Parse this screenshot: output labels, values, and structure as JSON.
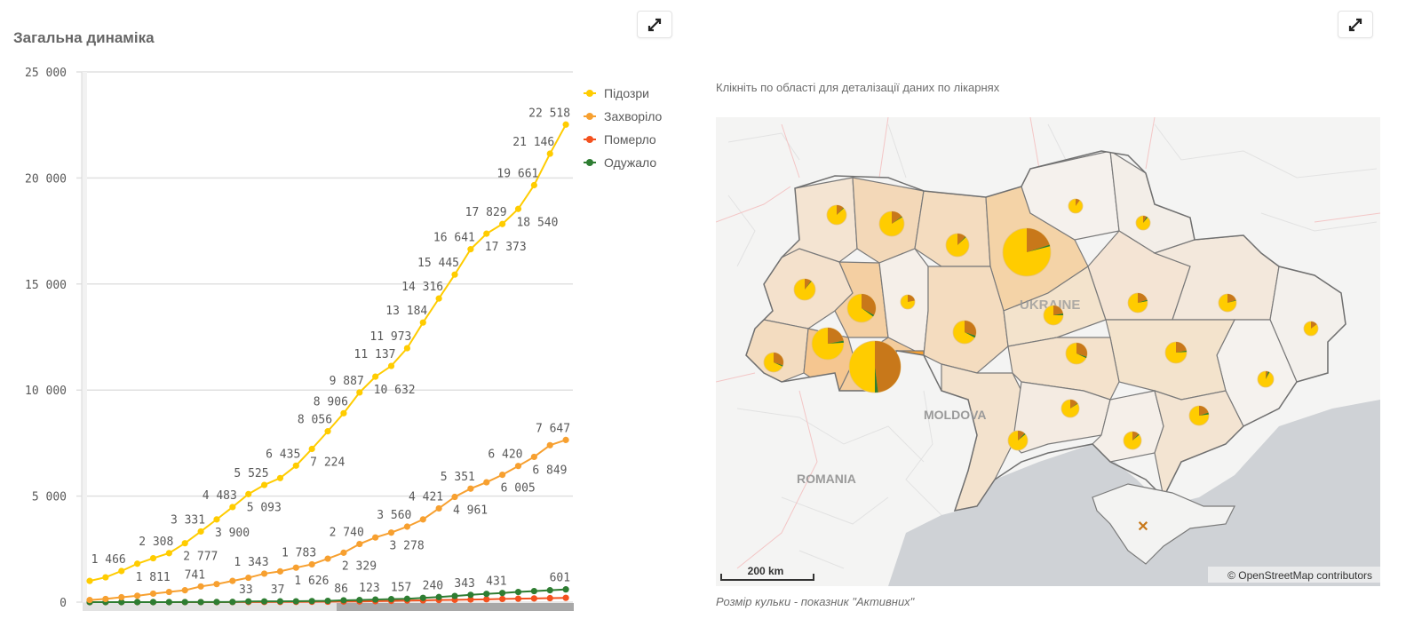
{
  "left_panel": {
    "title": "Загальна динаміка",
    "expand_icon": "expand-arrows-icon"
  },
  "right_panel": {
    "subtitle": "Клікніть по області для деталізації даних по лікарнях",
    "caption": "Розмір кульки - показник \"Активних\"",
    "expand_icon": "expand-arrows-icon",
    "map": {
      "labels": {
        "ukraine": "UKRAINE",
        "moldova": "MOLDOVA",
        "romania": "ROMANIA"
      },
      "scale_bar": "200 km",
      "attribution": "© OpenStreetMap contributors",
      "pie_colors": {
        "main": "#ffcc00",
        "second": "#c8781a",
        "third": "#2e7d32"
      },
      "pies": [
        {
          "size": 11,
          "second": 0.12,
          "third": 0.01
        },
        {
          "size": 14,
          "second": 0.15,
          "third": 0.01
        },
        {
          "size": 13,
          "second": 0.12,
          "third": 0.01
        },
        {
          "size": 27,
          "second": 0.2,
          "third": 0.01
        },
        {
          "size": 8,
          "second": 0.1,
          "third": 0.0
        },
        {
          "size": 8,
          "second": 0.08,
          "third": 0.03
        },
        {
          "size": 12,
          "second": 0.1,
          "third": 0.01
        },
        {
          "size": 16,
          "second": 0.33,
          "third": 0.02
        },
        {
          "size": 8,
          "second": 0.22,
          "third": 0.0
        },
        {
          "size": 13,
          "second": 0.3,
          "third": 0.03
        },
        {
          "size": 11,
          "second": 0.22,
          "third": 0.03
        },
        {
          "size": 11,
          "second": 0.2,
          "third": 0.02
        },
        {
          "size": 10,
          "second": 0.2,
          "third": 0.01
        },
        {
          "size": 18,
          "second": 0.22,
          "third": 0.02
        },
        {
          "size": 11,
          "second": 0.3,
          "third": 0.02
        },
        {
          "size": 29,
          "second": 0.48,
          "third": 0.02
        },
        {
          "size": 12,
          "second": 0.3,
          "third": 0.02
        },
        {
          "size": 12,
          "second": 0.22,
          "third": 0.02
        },
        {
          "size": 8,
          "second": 0.15,
          "third": 0.0
        },
        {
          "size": 9,
          "second": 0.05,
          "third": 0.03
        },
        {
          "size": 10,
          "second": 0.15,
          "third": 0.01
        },
        {
          "size": 11,
          "second": 0.2,
          "third": 0.03
        },
        {
          "size": 11,
          "second": 0.12,
          "third": 0.02
        },
        {
          "size": 10,
          "second": 0.12,
          "third": 0.02
        }
      ]
    }
  },
  "chart_data": {
    "type": "line",
    "title": "Загальна динаміка",
    "xlabel": "",
    "ylabel": "",
    "ylim": [
      0,
      25000
    ],
    "yticks": [
      "0",
      "5 000",
      "10 000",
      "15 000",
      "20 000",
      "25 000"
    ],
    "ytick_values": [
      0,
      5000,
      10000,
      15000,
      20000,
      25000
    ],
    "grid": true,
    "legend": "right",
    "series": [
      {
        "name": "Підозри",
        "color": "#ffcc00",
        "values": [
          1000,
          1170,
          1466,
          1811,
          2070,
          2308,
          2777,
          3331,
          3900,
          4483,
          5093,
          5525,
          5850,
          6435,
          7224,
          8056,
          8906,
          9887,
          10632,
          11137,
          11973,
          13184,
          14316,
          15445,
          16641,
          17373,
          17829,
          18540,
          19661,
          21146,
          22518
        ],
        "data_labels": [
          null,
          null,
          "1 466",
          "1 811",
          null,
          "2 308",
          "2 777",
          "3 331",
          "3 900",
          "4 483",
          "5 093",
          "5 525",
          null,
          "6 435",
          "7 224",
          "8 056",
          "8 906",
          "9 887",
          "10 632",
          "11 137",
          "11 973",
          "13 184",
          "14 316",
          "15 445",
          "16 641",
          "17 373",
          "17 829",
          "18 540",
          "19 661",
          "21 146",
          "22 518"
        ]
      },
      {
        "name": "Захворіло",
        "color": "#f7a030",
        "values": [
          100,
          150,
          230,
          300,
          400,
          480,
          560,
          741,
          850,
          1000,
          1150,
          1343,
          1450,
          1626,
          1783,
          2050,
          2329,
          2740,
          3050,
          3278,
          3560,
          3900,
          4421,
          4961,
          5351,
          5650,
          6005,
          6420,
          6849,
          7400,
          7647
        ],
        "data_labels": [
          null,
          null,
          null,
          null,
          null,
          null,
          null,
          "741",
          null,
          null,
          null,
          "1 343",
          null,
          "1 626",
          "1 783",
          null,
          "2 329",
          "2 740",
          null,
          "3 278",
          "3 560",
          null,
          "4 421",
          "4 961",
          "5 351",
          null,
          "6 005",
          "6 420",
          "6 849",
          null,
          "7 647"
        ]
      },
      {
        "name": "Померло",
        "color": "#f4511e",
        "values": [
          0,
          0,
          0,
          0,
          0,
          0,
          0,
          0,
          0,
          3,
          5,
          7,
          9,
          11,
          15,
          20,
          27,
          32,
          45,
          57,
          73,
          83,
          98,
          108,
          120,
          133,
          150,
          161,
          174,
          187,
          201
        ],
        "data_labels": []
      },
      {
        "name": "Одужало",
        "color": "#2e7d32",
        "values": [
          0,
          0,
          0,
          1,
          1,
          1,
          3,
          3,
          5,
          9,
          33,
          35,
          37,
          40,
          50,
          60,
          86,
          100,
          123,
          140,
          157,
          200,
          240,
          290,
          343,
          390,
          431,
          480,
          520,
          560,
          601
        ],
        "data_labels": [
          null,
          null,
          null,
          null,
          null,
          null,
          null,
          null,
          null,
          null,
          "33",
          null,
          "37",
          null,
          null,
          null,
          "86",
          null,
          "123",
          null,
          "157",
          null,
          "240",
          null,
          "343",
          null,
          "431",
          null,
          null,
          null,
          "601"
        ]
      }
    ]
  }
}
